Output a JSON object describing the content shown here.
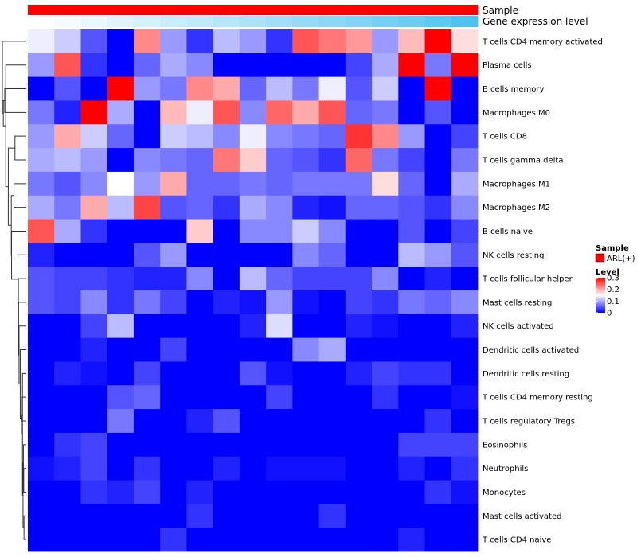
{
  "chart_data": {
    "type": "heatmap",
    "title": "",
    "annotation_tracks": [
      {
        "name": "Sample",
        "color": "#ff0000"
      },
      {
        "name": "Gene expression level",
        "gradient": [
          "#ffffff",
          "#4fc3f0"
        ]
      }
    ],
    "rows": [
      "T cells CD4 memory activated",
      "Plasma cells",
      "B cells memory",
      "Macrophages M0",
      "T cells CD8",
      "T cells gamma delta",
      "Macrophages M1",
      "Macrophages M2",
      "B cells naive",
      "NK cells resting",
      "T cells follicular helper",
      "Mast cells resting",
      "NK cells activated",
      "Dendritic cells activated",
      "Dendritic cells resting",
      "T cells CD4 memory resting",
      "T cells regulatory  Tregs",
      "Eosinophils",
      "Neutrophils",
      "Monocytes",
      "Mast cells activated",
      "T cells CD4 naive"
    ],
    "n_columns": 17,
    "values": [
      [
        0.14,
        0.12,
        0.05,
        0.0,
        0.22,
        0.09,
        0.03,
        0.11,
        0.09,
        0.03,
        0.25,
        0.23,
        0.21,
        0.09,
        0.19,
        0.3,
        0.17
      ],
      [
        0.09,
        0.25,
        0.03,
        0.0,
        0.06,
        0.1,
        0.08,
        0.0,
        0.0,
        0.0,
        0.0,
        0.0,
        0.04,
        0.1,
        0.3,
        0.07,
        0.3
      ],
      [
        0.0,
        0.05,
        0.0,
        0.3,
        0.09,
        0.07,
        0.22,
        0.2,
        0.06,
        0.11,
        0.07,
        0.14,
        0.05,
        0.12,
        0.0,
        0.3,
        0.0
      ],
      [
        0.07,
        0.02,
        0.3,
        0.1,
        0.0,
        0.19,
        0.14,
        0.25,
        0.08,
        0.24,
        0.2,
        0.25,
        0.06,
        0.07,
        0.0,
        0.05,
        0.0
      ],
      [
        0.09,
        0.2,
        0.12,
        0.06,
        0.0,
        0.12,
        0.11,
        0.08,
        0.14,
        0.08,
        0.07,
        0.06,
        0.27,
        0.22,
        0.09,
        0.0,
        0.04
      ],
      [
        0.1,
        0.11,
        0.09,
        0.0,
        0.08,
        0.07,
        0.06,
        0.23,
        0.18,
        0.06,
        0.05,
        0.03,
        0.24,
        0.07,
        0.04,
        0.0,
        0.07
      ],
      [
        0.07,
        0.05,
        0.08,
        0.15,
        0.09,
        0.2,
        0.06,
        0.06,
        0.07,
        0.06,
        0.07,
        0.07,
        0.07,
        0.17,
        0.06,
        0.0,
        0.1
      ],
      [
        0.1,
        0.07,
        0.2,
        0.11,
        0.26,
        0.05,
        0.06,
        0.03,
        0.1,
        0.08,
        0.02,
        0.01,
        0.06,
        0.06,
        0.05,
        0.03,
        0.08
      ],
      [
        0.25,
        0.1,
        0.03,
        0.0,
        0.0,
        0.0,
        0.18,
        0.0,
        0.08,
        0.08,
        0.12,
        0.08,
        0.0,
        0.0,
        0.05,
        0.0,
        0.04
      ],
      [
        0.02,
        0.0,
        0.0,
        0.0,
        0.05,
        0.09,
        0.0,
        0.0,
        0.0,
        0.0,
        0.08,
        0.06,
        0.0,
        0.0,
        0.11,
        0.09,
        0.05
      ],
      [
        0.05,
        0.04,
        0.04,
        0.03,
        0.02,
        0.02,
        0.08,
        0.0,
        0.11,
        0.06,
        0.04,
        0.04,
        0.04,
        0.08,
        0.0,
        0.02,
        0.0
      ],
      [
        0.05,
        0.04,
        0.08,
        0.03,
        0.07,
        0.04,
        0.0,
        0.02,
        0.01,
        0.09,
        0.01,
        0.0,
        0.04,
        0.03,
        0.07,
        0.06,
        0.08
      ],
      [
        0.0,
        0.0,
        0.04,
        0.11,
        0.0,
        0.0,
        0.0,
        0.0,
        0.02,
        0.13,
        0.0,
        0.0,
        0.02,
        0.01,
        0.0,
        0.0,
        0.02
      ],
      [
        0.0,
        0.0,
        0.02,
        0.0,
        0.0,
        0.04,
        0.0,
        0.0,
        0.0,
        0.0,
        0.08,
        0.1,
        0.0,
        0.0,
        0.0,
        0.0,
        0.0
      ],
      [
        0.0,
        0.02,
        0.01,
        0.0,
        0.04,
        0.0,
        0.0,
        0.0,
        0.05,
        0.01,
        0.0,
        0.0,
        0.02,
        0.04,
        0.03,
        0.03,
        0.0
      ],
      [
        0.0,
        0.0,
        0.0,
        0.05,
        0.06,
        0.0,
        0.0,
        0.0,
        0.0,
        0.04,
        0.0,
        0.0,
        0.0,
        0.03,
        0.0,
        0.0,
        0.01
      ],
      [
        0.0,
        0.0,
        0.0,
        0.07,
        0.0,
        0.0,
        0.02,
        0.05,
        0.0,
        0.0,
        0.0,
        0.0,
        0.0,
        0.0,
        0.0,
        0.03,
        0.0
      ],
      [
        0.0,
        0.03,
        0.04,
        0.0,
        0.0,
        0.0,
        0.0,
        0.0,
        0.0,
        0.0,
        0.0,
        0.0,
        0.0,
        0.0,
        0.04,
        0.04,
        0.04
      ],
      [
        0.01,
        0.02,
        0.04,
        0.0,
        0.03,
        0.0,
        0.0,
        0.02,
        0.0,
        0.01,
        0.01,
        0.01,
        0.0,
        0.0,
        0.02,
        0.0,
        0.03
      ],
      [
        0.0,
        0.0,
        0.03,
        0.02,
        0.04,
        0.0,
        0.02,
        0.0,
        0.0,
        0.0,
        0.0,
        0.0,
        0.0,
        0.0,
        0.0,
        0.03,
        0.01
      ],
      [
        0.0,
        0.0,
        0.0,
        0.0,
        0.0,
        0.0,
        0.03,
        0.0,
        0.0,
        0.0,
        0.0,
        0.03,
        0.0,
        0.0,
        0.0,
        0.0,
        0.0
      ],
      [
        0.0,
        0.0,
        0.0,
        0.0,
        0.0,
        0.03,
        0.0,
        0.0,
        0.0,
        0.0,
        0.0,
        0.0,
        0.0,
        0.0,
        0.02,
        0.0,
        0.0
      ]
    ],
    "gene_expression_level": [
      0.0,
      0.06,
      0.12,
      0.18,
      0.24,
      0.3,
      0.36,
      0.42,
      0.48,
      0.54,
      0.6,
      0.66,
      0.72,
      0.78,
      0.84,
      0.92,
      1.0
    ],
    "color_scale": {
      "low": "#0000ff",
      "mid": "#ffffff",
      "high": "#ff0000",
      "domain": [
        0,
        0.3
      ],
      "mid_value": 0.15
    },
    "legend": {
      "position": "right",
      "sample_title": "Sample",
      "sample_entry": "ARL(+)",
      "sample_color": "#ff0000",
      "level_title": "Level",
      "level_ticks": [
        {
          "value": 0.3,
          "label": "0.3"
        },
        {
          "value": 0.2,
          "label": "0.2"
        },
        {
          "value": 0.1,
          "label": "0.1"
        },
        {
          "value": 0,
          "label": "0"
        }
      ]
    },
    "row_dendrogram": true
  }
}
